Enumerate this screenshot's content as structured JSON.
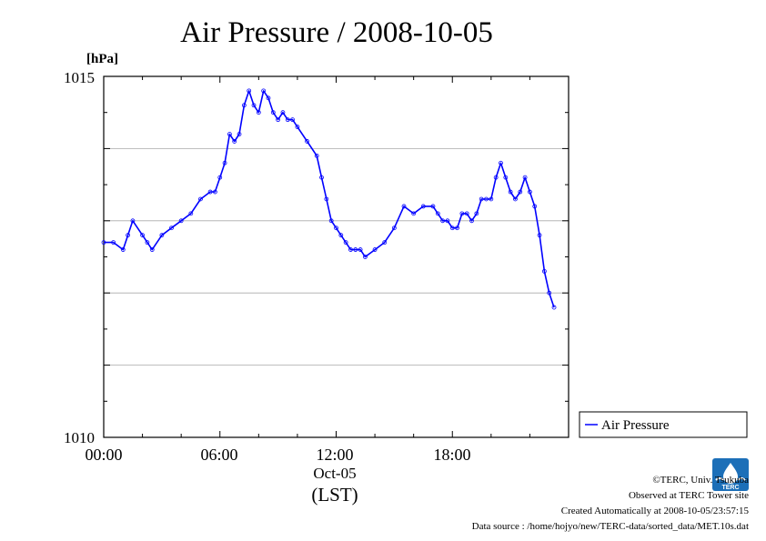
{
  "chart_data": {
    "type": "line",
    "title": "Air Pressure / 2008-10-05",
    "ylabel": "[hPa]",
    "xlabel": "(LST)",
    "x_date_label": "Oct-05",
    "ylim": [
      1010,
      1015
    ],
    "y_ticks": [
      "1010",
      "1015"
    ],
    "y_gridlines": [
      1011,
      1012,
      1013,
      1014
    ],
    "x_ticks": [
      "00:00",
      "06:00",
      "12:00",
      "18:00"
    ],
    "x_range_hours": [
      0,
      23.5
    ],
    "grid": true,
    "legend_position": "right",
    "series": [
      {
        "name": "Air Pressure",
        "color": "#0000ff",
        "x_hours": [
          0,
          0.5,
          1,
          1.25,
          1.5,
          2,
          2.25,
          2.5,
          3,
          3.5,
          4,
          4.5,
          5,
          5.5,
          5.75,
          6,
          6.25,
          6.5,
          6.75,
          7,
          7.25,
          7.5,
          7.75,
          8,
          8.25,
          8.5,
          8.75,
          9,
          9.25,
          9.5,
          9.75,
          10,
          10.5,
          11,
          11.25,
          11.5,
          11.75,
          12,
          12.25,
          12.5,
          12.75,
          13,
          13.25,
          13.5,
          14,
          14.5,
          15,
          15.5,
          16,
          16.5,
          17,
          17.25,
          17.5,
          17.75,
          18,
          18.25,
          18.5,
          18.75,
          19,
          19.25,
          19.5,
          19.75,
          20,
          20.25,
          20.5,
          20.75,
          21,
          21.25,
          21.5,
          21.75,
          22,
          22.25,
          22.5,
          22.75,
          23,
          23.25
        ],
        "values": [
          1012.7,
          1012.7,
          1012.6,
          1012.8,
          1013.0,
          1012.8,
          1012.7,
          1012.6,
          1012.8,
          1012.9,
          1013.0,
          1013.1,
          1013.3,
          1013.4,
          1013.4,
          1013.6,
          1013.8,
          1014.2,
          1014.1,
          1014.2,
          1014.6,
          1014.8,
          1014.6,
          1014.5,
          1014.8,
          1014.7,
          1014.5,
          1014.4,
          1014.5,
          1014.4,
          1014.4,
          1014.3,
          1014.1,
          1013.9,
          1013.6,
          1013.3,
          1013.0,
          1012.9,
          1012.8,
          1012.7,
          1012.6,
          1012.6,
          1012.6,
          1012.5,
          1012.6,
          1012.7,
          1012.9,
          1013.2,
          1013.1,
          1013.2,
          1013.2,
          1013.1,
          1013.0,
          1013.0,
          1012.9,
          1012.9,
          1013.1,
          1013.1,
          1013.0,
          1013.1,
          1013.3,
          1013.3,
          1013.3,
          1013.6,
          1013.8,
          1013.6,
          1013.4,
          1013.3,
          1013.4,
          1013.6,
          1013.4,
          1013.2,
          1012.8,
          1012.3,
          1012.0,
          1011.8
        ]
      }
    ]
  },
  "credits": {
    "copyright": "©TERC, Univ. Tsukuba",
    "site": "Observed at TERC Tower site",
    "created": "Created Automatically at 2008-10-05/23:57:15",
    "source": "Data source : /home/hojyo/new/TERC-data/sorted_data/MET.10s.dat"
  },
  "logo": {
    "text": "TERC",
    "color": "#1c6fb8"
  }
}
